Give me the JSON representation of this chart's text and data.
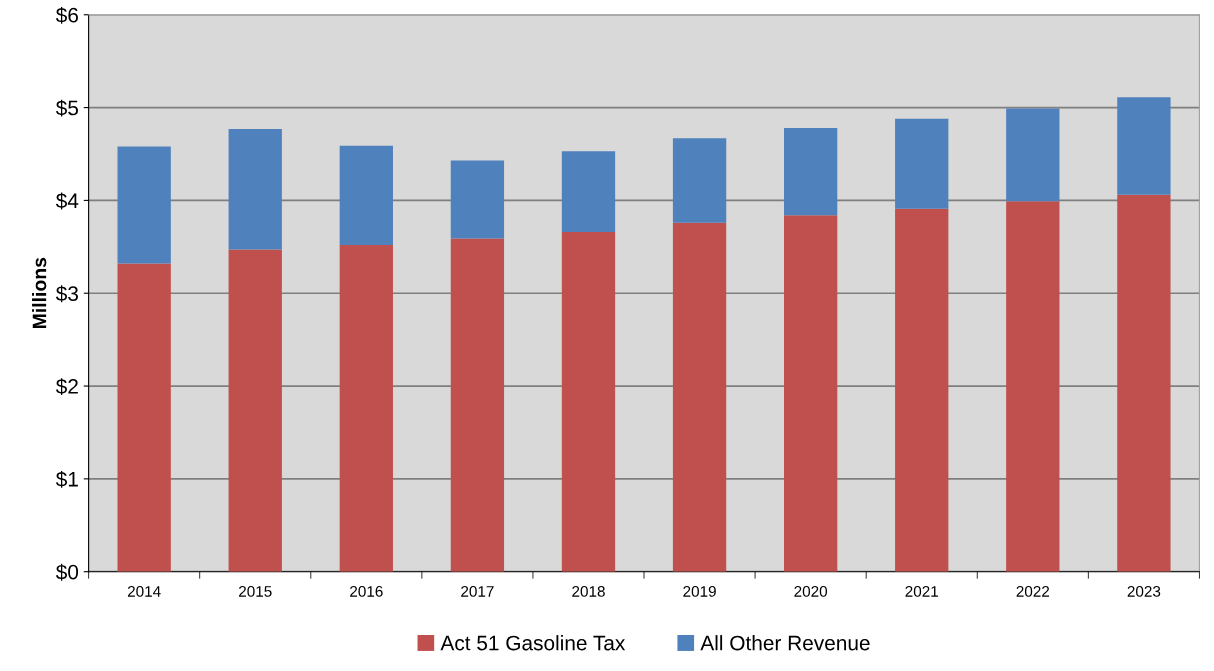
{
  "chart_data": {
    "type": "bar",
    "stacked": true,
    "ylabel": "Millions",
    "categories": [
      "2014",
      "2015",
      "2016",
      "2017",
      "2018",
      "2019",
      "2020",
      "2021",
      "2022",
      "2023"
    ],
    "series": [
      {
        "name": "Act 51 Gasoline Tax",
        "color": "#c0504d",
        "values": [
          3.32,
          3.47,
          3.52,
          3.59,
          3.66,
          3.76,
          3.84,
          3.91,
          3.99,
          4.06
        ]
      },
      {
        "name": "All Other Revenue",
        "color": "#4f81bd",
        "values": [
          1.26,
          1.3,
          1.07,
          0.84,
          0.87,
          0.91,
          0.94,
          0.97,
          1.0,
          1.05
        ]
      }
    ],
    "ylim": [
      0,
      6
    ],
    "yticks": [
      {
        "value": 0,
        "label": "$0"
      },
      {
        "value": 1,
        "label": "$1"
      },
      {
        "value": 2,
        "label": "$2"
      },
      {
        "value": 3,
        "label": "$3"
      },
      {
        "value": 4,
        "label": "$4"
      },
      {
        "value": 5,
        "label": "$5"
      },
      {
        "value": 6,
        "label": "$6"
      }
    ],
    "grid": "y",
    "legend": "bottom"
  }
}
